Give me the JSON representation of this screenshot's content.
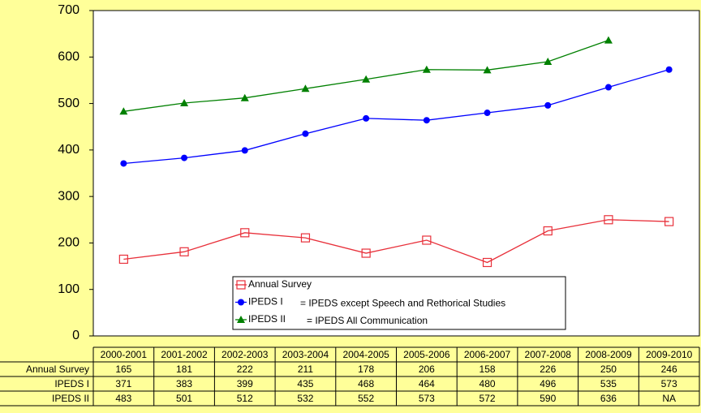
{
  "chart_data": {
    "type": "line",
    "categories": [
      "2000-2001",
      "2001-2002",
      "2002-2003",
      "2003-2004",
      "2004-2005",
      "2005-2006",
      "2006-2007",
      "2007-2008",
      "2008-2009",
      "2009-2010"
    ],
    "series": [
      {
        "name": "Annual Survey",
        "color": "#e8303a",
        "marker": "square-open",
        "values": [
          165,
          181,
          222,
          211,
          178,
          206,
          158,
          226,
          250,
          246
        ]
      },
      {
        "name": "IPEDS I",
        "color": "#0000ff",
        "marker": "circle",
        "values": [
          371,
          383,
          399,
          435,
          468,
          464,
          480,
          496,
          535,
          573
        ]
      },
      {
        "name": "IPEDS II",
        "color": "#008000",
        "marker": "triangle",
        "values": [
          483,
          501,
          512,
          532,
          552,
          573,
          572,
          590,
          636,
          null
        ],
        "value_labels": [
          "483",
          "501",
          "512",
          "532",
          "552",
          "573",
          "572",
          "590",
          "636",
          "NA"
        ]
      }
    ],
    "annotations": [
      "= IPEDS except Speech and Rethorical Studies",
      "= IPEDS All Communication"
    ],
    "ylim": [
      0,
      700
    ],
    "yticks": [
      0,
      100,
      200,
      300,
      400,
      500,
      600,
      700
    ],
    "grid": false,
    "data_table": true
  }
}
